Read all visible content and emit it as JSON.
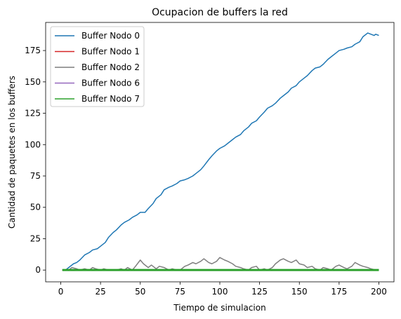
{
  "chart_data": {
    "type": "line",
    "title": "Ocupacion de buffers la red",
    "xlabel": "Tiempo de simulacion",
    "ylabel": "Cantidad de paquetes en los buffers",
    "xlim": [
      -9.5,
      209.5
    ],
    "ylim": [
      -9.4,
      197.4
    ],
    "xticks": [
      0,
      25,
      50,
      75,
      100,
      125,
      150,
      175,
      200
    ],
    "yticks": [
      0,
      25,
      50,
      75,
      100,
      125,
      150,
      175
    ],
    "legend_position": "upper-left",
    "grid": false,
    "series": [
      {
        "name": "Buffer Nodo 0",
        "color": "#1f77b4",
        "x": [
          1,
          3,
          5,
          8,
          10,
          12,
          15,
          18,
          20,
          23,
          25,
          28,
          30,
          33,
          35,
          38,
          40,
          43,
          45,
          48,
          50,
          53,
          55,
          58,
          60,
          63,
          65,
          68,
          70,
          73,
          75,
          78,
          80,
          83,
          85,
          88,
          90,
          93,
          95,
          98,
          100,
          103,
          105,
          108,
          110,
          113,
          115,
          118,
          120,
          123,
          125,
          128,
          130,
          133,
          135,
          138,
          140,
          143,
          145,
          148,
          150,
          153,
          155,
          158,
          160,
          163,
          165,
          168,
          170,
          173,
          175,
          178,
          180,
          183,
          185,
          188,
          190,
          193,
          195,
          197,
          198,
          200
        ],
        "y": [
          0,
          0,
          2,
          5,
          6,
          8,
          12,
          14,
          16,
          17,
          19,
          22,
          26,
          30,
          32,
          36,
          38,
          40,
          42,
          44,
          46,
          46,
          49,
          53,
          57,
          60,
          64,
          66,
          67,
          69,
          71,
          72,
          73,
          75,
          77,
          80,
          83,
          88,
          91,
          95,
          97,
          99,
          101,
          104,
          106,
          108,
          111,
          114,
          117,
          119,
          122,
          126,
          129,
          131,
          133,
          137,
          139,
          142,
          145,
          147,
          150,
          153,
          155,
          159,
          161,
          162,
          164,
          168,
          170,
          173,
          175,
          176,
          177,
          178,
          180,
          182,
          186,
          189,
          188,
          187,
          188,
          187
        ]
      },
      {
        "name": "Buffer Nodo 1",
        "color": "#d62728",
        "x": [
          1,
          200
        ],
        "y": [
          0,
          0
        ]
      },
      {
        "name": "Buffer Nodo 2",
        "color": "#7f7f7f",
        "x": [
          1,
          5,
          7,
          10,
          12,
          15,
          18,
          20,
          22,
          25,
          27,
          30,
          35,
          38,
          40,
          42,
          45,
          47,
          50,
          52,
          55,
          57,
          60,
          62,
          65,
          68,
          70,
          73,
          75,
          78,
          80,
          83,
          85,
          88,
          90,
          93,
          95,
          98,
          100,
          103,
          105,
          108,
          110,
          113,
          115,
          118,
          120,
          123,
          125,
          128,
          130,
          133,
          135,
          138,
          140,
          143,
          145,
          148,
          150,
          153,
          155,
          158,
          160,
          163,
          165,
          168,
          170,
          173,
          175,
          178,
          180,
          183,
          185,
          188,
          190,
          193,
          195,
          198,
          200
        ],
        "y": [
          0,
          0,
          2,
          1,
          0,
          1,
          0,
          2,
          1,
          0,
          1,
          0,
          0,
          1,
          0,
          2,
          0,
          3,
          8,
          5,
          2,
          4,
          1,
          3,
          2,
          0,
          1,
          0,
          0,
          3,
          4,
          6,
          5,
          7,
          9,
          6,
          5,
          7,
          10,
          8,
          7,
          5,
          3,
          2,
          1,
          0,
          2,
          3,
          0,
          1,
          0,
          2,
          5,
          8,
          9,
          7,
          6,
          8,
          5,
          4,
          2,
          3,
          1,
          0,
          2,
          1,
          0,
          3,
          4,
          2,
          1,
          3,
          6,
          4,
          3,
          2,
          1,
          0,
          0
        ]
      },
      {
        "name": "Buffer Nodo 6",
        "color": "#9467bd",
        "x": [
          1,
          200
        ],
        "y": [
          0,
          0
        ]
      },
      {
        "name": "Buffer Nodo 7",
        "color": "#2ca02c",
        "x": [
          1,
          200
        ],
        "y": [
          0,
          0
        ]
      }
    ]
  }
}
